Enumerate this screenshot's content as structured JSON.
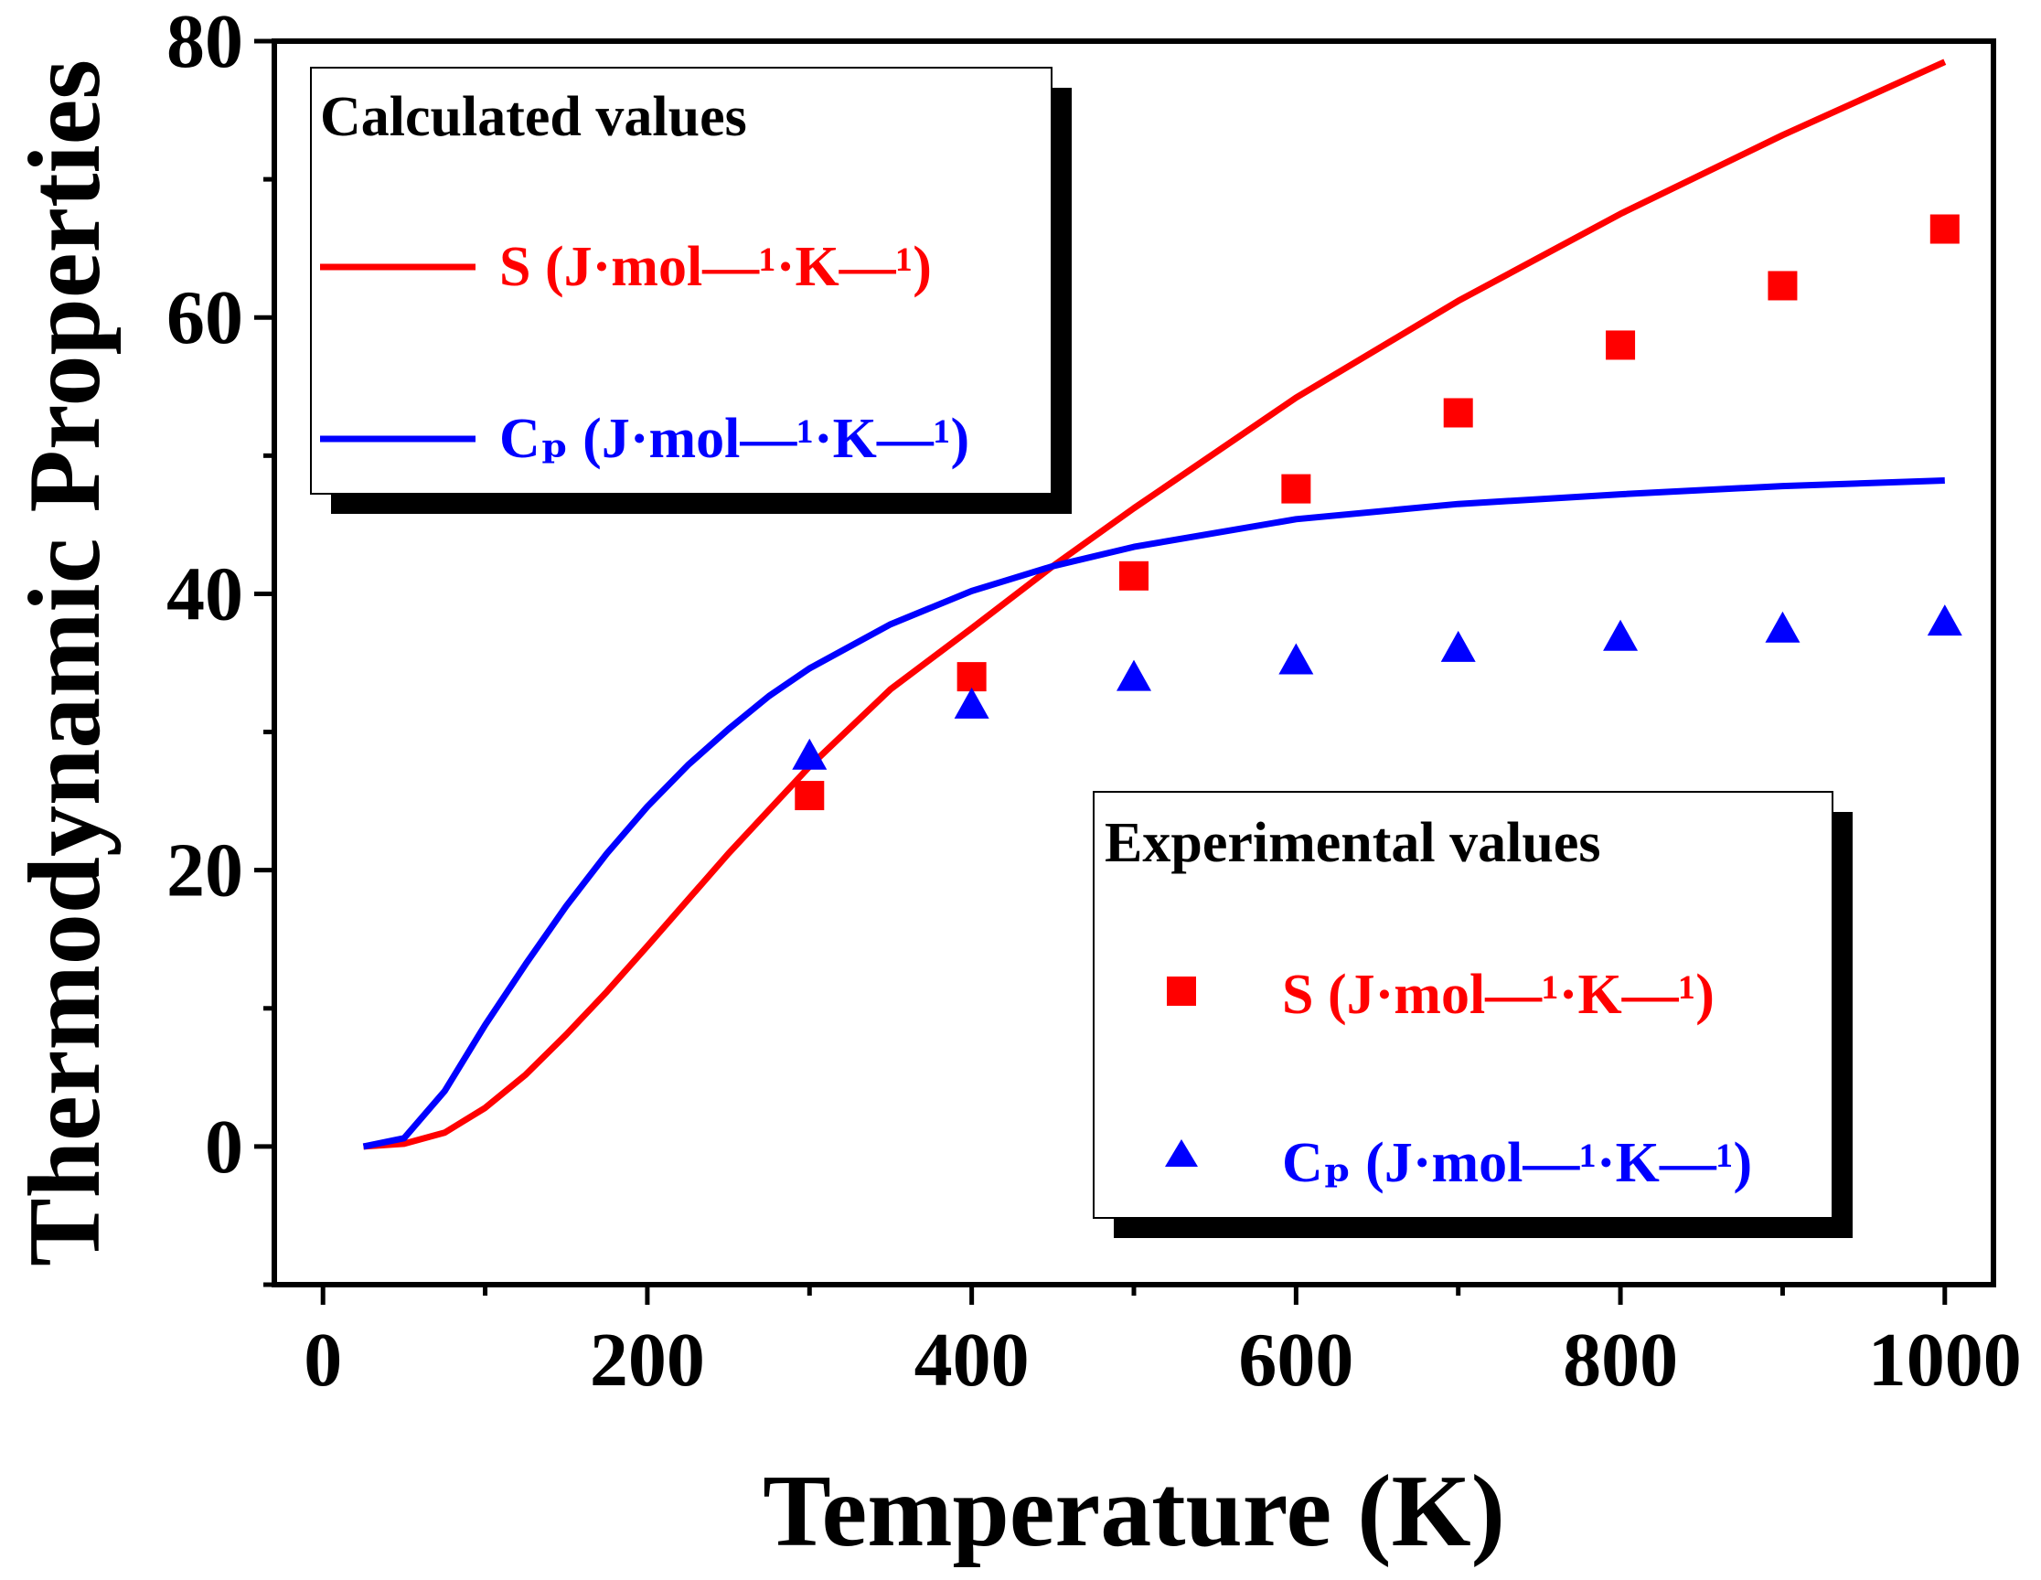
{
  "chart_data": {
    "type": "line",
    "xlabel": "Temperature (K)",
    "ylabel": "Thermodynamic Properties",
    "xlim": [
      -30,
      1030
    ],
    "ylim": [
      -10,
      80
    ],
    "xticks": [
      0,
      200,
      400,
      600,
      800,
      1000
    ],
    "yticks": [
      0,
      20,
      40,
      60,
      80
    ],
    "x_minor_step": 100,
    "y_minor_step": 10,
    "grid": false,
    "colors": {
      "S": "#ff0000",
      "Cp": "#0000ff",
      "axis": "#000000"
    },
    "legends": [
      {
        "title": "Calculated values",
        "placement": "top-left",
        "entries": [
          {
            "marker": "line",
            "series": "S",
            "label": "S (J·mol—¹·K—¹)"
          },
          {
            "marker": "line",
            "series": "Cp",
            "label": "Cₚ (J·mol—¹·K—¹)"
          }
        ]
      },
      {
        "title": "Experimental values",
        "placement": "bottom-right",
        "entries": [
          {
            "marker": "square",
            "series": "S",
            "label": "S (J·mol—¹·K—¹)"
          },
          {
            "marker": "triangle",
            "series": "Cp",
            "label": "Cₚ (J·mol—¹·K—¹)"
          }
        ]
      }
    ],
    "series": [
      {
        "name": "S calculated",
        "key": "S",
        "kind": "line",
        "x": [
          25,
          50,
          75,
          100,
          125,
          150,
          175,
          200,
          250,
          300,
          350,
          400,
          450,
          500,
          600,
          700,
          800,
          900,
          1000
        ],
        "y": [
          0,
          0.2,
          1.0,
          2.8,
          5.2,
          8.1,
          11.2,
          14.5,
          21.2,
          27.5,
          33.1,
          37.5,
          42.0,
          46.2,
          54.2,
          61.2,
          67.5,
          73.2,
          78.5
        ]
      },
      {
        "name": "Cp calculated",
        "key": "Cp",
        "kind": "line",
        "x": [
          25,
          50,
          75,
          100,
          125,
          150,
          175,
          200,
          225,
          250,
          275,
          300,
          350,
          400,
          450,
          500,
          600,
          700,
          800,
          900,
          1000
        ],
        "y": [
          0,
          0.6,
          4.0,
          8.8,
          13.2,
          17.4,
          21.2,
          24.6,
          27.6,
          30.2,
          32.6,
          34.6,
          37.8,
          40.2,
          42.0,
          43.4,
          45.4,
          46.5,
          47.2,
          47.8,
          48.2
        ]
      },
      {
        "name": "S experimental",
        "key": "S",
        "kind": "square",
        "x": [
          300,
          400,
          500,
          600,
          700,
          800,
          900,
          1000
        ],
        "y": [
          25.4,
          34.0,
          41.3,
          47.6,
          53.1,
          58.0,
          62.3,
          66.4
        ]
      },
      {
        "name": "Cp experimental",
        "key": "Cp",
        "kind": "triangle",
        "x": [
          300,
          400,
          500,
          600,
          700,
          800,
          900,
          1000
        ],
        "y": [
          28.2,
          31.9,
          33.9,
          35.1,
          36.0,
          36.8,
          37.4,
          37.9
        ]
      }
    ]
  }
}
